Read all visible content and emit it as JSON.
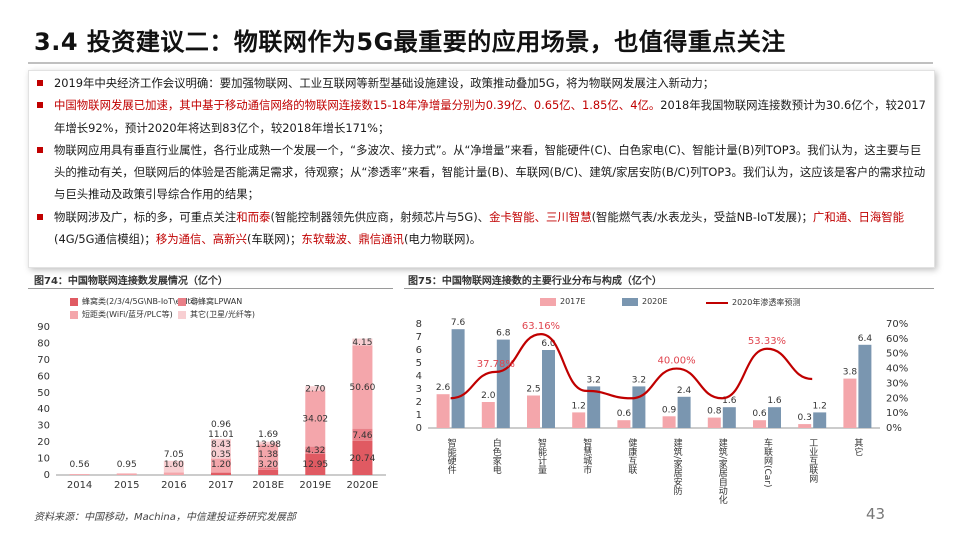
{
  "title": "3.4 投资建议二：物联网作为5G最重要的应用场景，也值得重点关注",
  "bullets": [
    {
      "segments": [
        {
          "text": "2019年中央经济工作会议明确：要加强物联网、工业互联网等新型基础设施建设，政策推动叠加5G，将为物联网发展注入新动力；",
          "red": false
        }
      ]
    },
    {
      "segments": [
        {
          "text": "中国物联网发展已加速，其中基于移动通信网络的物联网连接数15-18年净增量分别为0.39亿、0.65亿、1.85亿、4亿。",
          "red": true
        },
        {
          "text": "2018年我国物联网连接数预计为30.6亿个，较2017年增长92%，预计2020年将达到83亿个，较2018年增长171%；",
          "red": false
        }
      ]
    },
    {
      "segments": [
        {
          "text": "物联网应用具有垂直行业属性，各行业成熟一个发展一个，“多波次、接力式”。从“净增量”来看，智能硬件(C)、白色家电(C)、智能计量(B)列TOP3。我们认为，这主要与巨头的推动有关，但联网后的体验是否能满足需求，待观察；从“渗透率”来看，智能计量(B)、车联网(B/C)、建筑/家居安防(B/C)列TOP3。我们认为，这应该是客户的需求拉动与巨头推动及政策引导综合作用的结果；",
          "red": false
        }
      ]
    },
    {
      "segments": [
        {
          "text": "物联网涉及广，标的多，可重点关注",
          "red": false
        },
        {
          "text": "和而泰",
          "red": true
        },
        {
          "text": "(智能控制器领先供应商，射频芯片与5G)、",
          "red": false
        },
        {
          "text": "金卡智能、三川智慧",
          "red": true
        },
        {
          "text": "(智能燃气表/水表龙头，受益NB-IoT发展)；",
          "red": false
        },
        {
          "text": "广和通、日海智能",
          "red": true
        },
        {
          "text": "(4G/5G通信模组)；",
          "red": false
        },
        {
          "text": "移为通信、高新兴",
          "red": true
        },
        {
          "text": "(车联网)；",
          "red": false
        },
        {
          "text": "东软载波、鼎信通讯",
          "red": true
        },
        {
          "text": "(电力物联网)。",
          "red": false
        }
      ]
    }
  ],
  "fig74": {
    "title": "图74：中国物联网连接数发展情况（亿个）"
  },
  "fig75": {
    "title": "图75：中国物联网连接数的主要行业分布与构成（亿个）"
  },
  "footer": "资料来源：中国移动，Machina，中信建投证券研究发展部",
  "page_number": "43",
  "colors": {
    "red": "#c00000",
    "pink": "#f4a6ab",
    "light_pink": "#f8cfd2",
    "blue": "#7a96b0",
    "line_red": "#c00000"
  },
  "chart_data": [
    {
      "type": "bar",
      "subtype": "stacked",
      "categories": [
        "2014",
        "2015",
        "2016",
        "2017",
        "2018E",
        "2019E",
        "2020E"
      ],
      "ylim": [
        0,
        90
      ],
      "yticks": [
        0,
        10,
        20,
        30,
        40,
        50,
        60,
        70,
        80,
        90
      ],
      "series": [
        {
          "name": "蜂窝类(2/3/4/5G\\NB-IoT\\eMtc)",
          "values": [
            null,
            null,
            null,
            1.2,
            3.2,
            12.95,
            20.74
          ],
          "labels": [
            "",
            "",
            "",
            "1.20",
            "3.20",
            "12.95",
            "20.74"
          ]
        },
        {
          "name": "非蜂窝LPWAN",
          "values": [
            null,
            null,
            null,
            0.35,
            1.38,
            4.32,
            7.46
          ],
          "labels": [
            "",
            "",
            "",
            "0.35",
            "1.38",
            "4.32",
            "7.46"
          ]
        },
        {
          "name": "短距类(WiFi/蓝牙/PLC等)",
          "values": [
            0.56,
            0.95,
            1.6,
            8.43,
            13.98,
            34.02,
            50.6
          ],
          "labels": [
            "0.56",
            "0.95",
            "1.60",
            "8.43",
            "13.98",
            "34.02",
            "50.60"
          ]
        },
        {
          "name": "其它(卫星/光纤等)",
          "values": [
            null,
            null,
            7.05,
            11.01,
            1.69,
            2.7,
            4.15
          ],
          "labels": [
            "",
            "",
            "7.05",
            "11.01",
            "1.69",
            "2.70",
            "4.15"
          ]
        },
        {
          "name": "",
          "values": [
            null,
            null,
            null,
            0.96,
            null,
            null,
            null
          ],
          "labels": [
            "",
            "",
            "",
            "0.96",
            "",
            "",
            ""
          ]
        }
      ],
      "legend": [
        "蜂窝类(2/3/4/5G\\NB-IoT\\eMtc)",
        "非蜂窝LPWAN",
        "短距类(WiFi/蓝牙/PLC等)",
        "其它(卫星/光纤等)"
      ]
    },
    {
      "type": "bar",
      "subtype": "bar+line",
      "categories": [
        "智能硬件",
        "白色家电",
        "智能计量",
        "智慧城市",
        "健康互联",
        "建筑/家居安防",
        "建筑/家居自动化",
        "车联网(Car)",
        "工业互联网",
        "其它"
      ],
      "ylim_left": [
        0,
        8
      ],
      "yticks_left": [
        0,
        1,
        2,
        3,
        4,
        5,
        6,
        7,
        8
      ],
      "ylim_right": [
        0,
        70
      ],
      "yticks_right": [
        "0%",
        "10%",
        "20%",
        "30%",
        "40%",
        "50%",
        "60%",
        "70%"
      ],
      "series": [
        {
          "name": "2017E",
          "values": [
            2.6,
            2.0,
            2.5,
            1.2,
            0.6,
            0.9,
            0.8,
            0.6,
            0.3,
            3.8
          ]
        },
        {
          "name": "2020E",
          "values": [
            7.6,
            6.8,
            6.0,
            3.2,
            3.2,
            2.4,
            1.6,
            1.6,
            1.2,
            6.4
          ]
        },
        {
          "name": "2020年渗透率预测",
          "type": "line",
          "axis": "right",
          "values": [
            20,
            37.78,
            63.16,
            25,
            20,
            40.0,
            20,
            53.33,
            33,
            null
          ],
          "labels": [
            "",
            "37.78%",
            "63.16%",
            "",
            "",
            "40.00%",
            "",
            "53.33%",
            "",
            ""
          ]
        }
      ]
    }
  ]
}
